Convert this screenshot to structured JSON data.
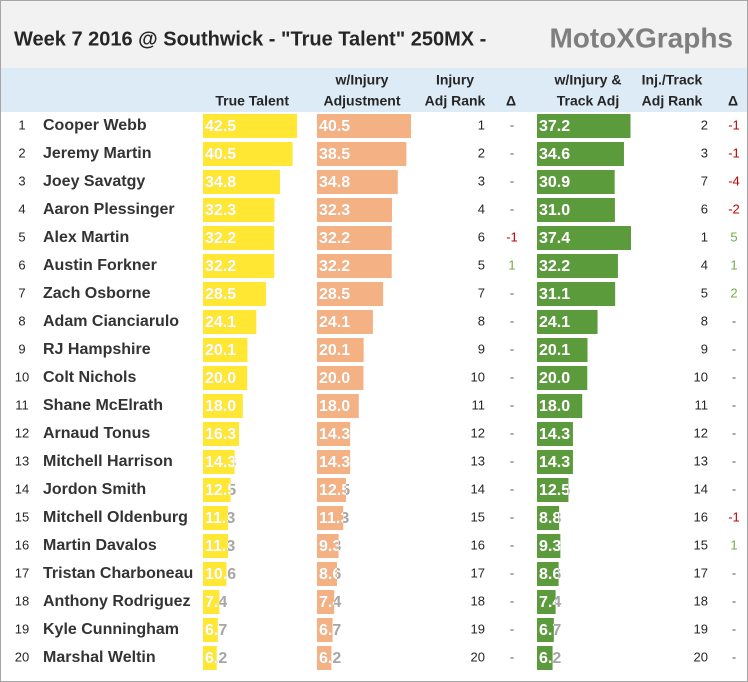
{
  "title": "Week 7 2016 @ Southwick - \"True Talent\" 250MX  -",
  "brand": "MotoXGraphs",
  "table": {
    "headers": [
      [
        "True Talent"
      ],
      [
        "w/Injury",
        "Adjustment"
      ],
      [
        "Injury",
        "Adj Rank"
      ],
      [
        "Δ"
      ],
      [
        "w/Injury &",
        "Track Adj"
      ],
      [
        "Inj./Track",
        "Adj Rank"
      ],
      [
        "Δ"
      ]
    ],
    "colors": [
      "#ffe733",
      "#f4b183",
      "#5b9b3c"
    ],
    "rows": [
      [
        "1",
        "Cooper Webb",
        "42.5",
        "40.5",
        "1",
        "-",
        "37.2",
        "2",
        "-1"
      ],
      [
        "2",
        "Jeremy Martin",
        "40.5",
        "38.5",
        "2",
        "-",
        "34.6",
        "3",
        "-1"
      ],
      [
        "3",
        "Joey Savatgy",
        "34.8",
        "34.8",
        "3",
        "-",
        "30.9",
        "7",
        "-4"
      ],
      [
        "4",
        "Aaron Plessinger",
        "32.3",
        "32.3",
        "4",
        "-",
        "31.0",
        "6",
        "-2"
      ],
      [
        "5",
        "Alex Martin",
        "32.2",
        "32.2",
        "6",
        "-1",
        "37.4",
        "1",
        "5"
      ],
      [
        "6",
        "Austin Forkner",
        "32.2",
        "32.2",
        "5",
        "1",
        "32.2",
        "4",
        "1"
      ],
      [
        "7",
        "Zach Osborne",
        "28.5",
        "28.5",
        "7",
        "-",
        "31.1",
        "5",
        "2"
      ],
      [
        "8",
        "Adam Cianciarulo",
        "24.1",
        "24.1",
        "8",
        "-",
        "24.1",
        "8",
        "-"
      ],
      [
        "9",
        "RJ Hampshire",
        "20.1",
        "20.1",
        "9",
        "-",
        "20.1",
        "9",
        "-"
      ],
      [
        "10",
        "Colt Nichols",
        "20.0",
        "20.0",
        "10",
        "-",
        "20.0",
        "10",
        "-"
      ],
      [
        "11",
        "Shane McElrath",
        "18.0",
        "18.0",
        "11",
        "-",
        "18.0",
        "11",
        "-"
      ],
      [
        "12",
        "Arnaud Tonus",
        "16.3",
        "14.3",
        "12",
        "-",
        "14.3",
        "12",
        "-"
      ],
      [
        "13",
        "Mitchell Harrison",
        "14.3",
        "14.3",
        "13",
        "-",
        "14.3",
        "13",
        "-"
      ],
      [
        "14",
        "Jordon Smith",
        "12.5",
        "12.5",
        "14",
        "-",
        "12.5",
        "14",
        "-"
      ],
      [
        "15",
        "Mitchell Oldenburg",
        "11.3",
        "11.3",
        "15",
        "-",
        "8.8",
        "16",
        "-1"
      ],
      [
        "16",
        "Martin Davalos",
        "11.3",
        "9.3",
        "16",
        "-",
        "9.3",
        "15",
        "1"
      ],
      [
        "17",
        "Tristan Charboneau",
        "10.6",
        "8.6",
        "17",
        "-",
        "8.6",
        "17",
        "-"
      ],
      [
        "18",
        "Anthony Rodriguez",
        "7.4",
        "7.4",
        "18",
        "-",
        "7.4",
        "18",
        "-"
      ],
      [
        "19",
        "Kyle Cunningham",
        "6.7",
        "6.7",
        "19",
        "-",
        "6.7",
        "19",
        "-"
      ],
      [
        "20",
        "Marshal Weltin",
        "6.2",
        "6.2",
        "20",
        "-",
        "6.2",
        "20",
        "-"
      ]
    ]
  }
}
